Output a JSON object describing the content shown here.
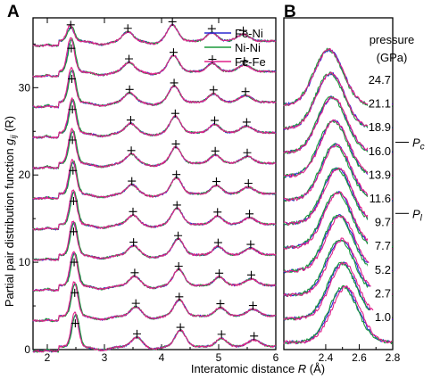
{
  "chart_data": [
    {
      "panel": "A",
      "type": "line",
      "xlabel": "Interatomic distance R (Å)",
      "ylabel": "Partial pair distribution function g_ij (R)",
      "xlim": [
        1.75,
        6.0
      ],
      "ylim": [
        0,
        38
      ],
      "xticks": [
        2,
        3,
        4,
        5,
        6
      ],
      "yticks": [
        0,
        10,
        20,
        30
      ],
      "legend_position": "top-right",
      "series": [
        {
          "name": "Fe-Ni",
          "color": "#2a2ad0"
        },
        {
          "name": "Ni-Ni",
          "color": "#1a9a3a"
        },
        {
          "name": "Fe-Fe",
          "color": "#e0208a"
        }
      ],
      "curve_offsets": [
        0,
        3.5,
        7,
        10.5,
        14,
        17.5,
        21,
        24.5,
        28,
        31.5,
        35
      ],
      "pressures_GPa": [
        1.0,
        2.7,
        5.2,
        7.7,
        9.7,
        11.6,
        13.9,
        16.0,
        18.9,
        21.1,
        24.7
      ],
      "peak_positions_A": {
        "p1": [
          2.49,
          2.48,
          2.47,
          2.46,
          2.46,
          2.45,
          2.44,
          2.44,
          2.43,
          2.42,
          2.41
        ],
        "p2": [
          3.57,
          3.55,
          3.53,
          3.51,
          3.5,
          3.48,
          3.47,
          3.46,
          3.44,
          3.43,
          3.41
        ],
        "p3": [
          4.33,
          4.31,
          4.3,
          4.29,
          4.27,
          4.26,
          4.25,
          4.24,
          4.22,
          4.21,
          4.19
        ],
        "p4": [
          5.05,
          5.03,
          5.01,
          4.99,
          4.98,
          4.96,
          4.94,
          4.93,
          4.91,
          4.89,
          4.88
        ],
        "p5": [
          5.62,
          5.6,
          5.57,
          5.56,
          5.54,
          5.52,
          5.5,
          5.49,
          5.47,
          5.45,
          5.43
        ]
      },
      "first_peak_height": 3.6,
      "top_curve_first_peak_height": 36.5
    },
    {
      "panel": "B",
      "type": "line",
      "xlabel": "",
      "xlim": [
        2.15,
        2.8
      ],
      "xticks": [
        2.4,
        2.6,
        2.8
      ],
      "series": [
        {
          "name": "Fe-Ni",
          "color": "#2a2ad0"
        },
        {
          "name": "Ni-Ni",
          "color": "#1a9a3a"
        },
        {
          "name": "Fe-Fe",
          "color": "#e0208a"
        }
      ],
      "pressure_header": [
        "pressure",
        "(GPa)"
      ],
      "pressure_labels": [
        "24.7",
        "21.1",
        "18.9",
        "16.0",
        "13.9",
        "11.6",
        "9.7",
        "7.7",
        "5.2",
        "2.7",
        "1.0"
      ],
      "marker_labels": [
        {
          "text": "P",
          "sub": "c",
          "between": [
            "18.9",
            "16.0"
          ]
        },
        {
          "text": "P",
          "sub": "l",
          "between": [
            "11.6",
            "9.7"
          ]
        }
      ],
      "peak_centers_A": [
        2.42,
        2.43,
        2.44,
        2.45,
        2.46,
        2.47,
        2.47,
        2.48,
        2.49,
        2.5,
        2.51
      ]
    }
  ],
  "labels": {
    "panel_a": "A",
    "panel_b": "B",
    "y_axis": "Partial pair distribution function",
    "y_axis_sym": "g",
    "y_axis_sub": "ij",
    "y_axis_tail": " (R)",
    "x_axis": "Interatomic distance ",
    "x_axis_sym": "R",
    "x_axis_tail": " (Å)"
  }
}
